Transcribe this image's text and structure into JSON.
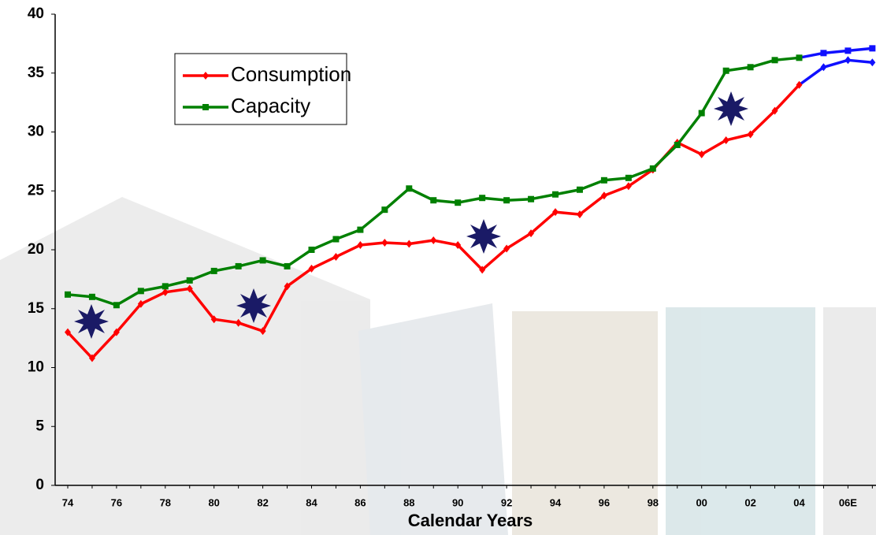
{
  "chart_data": {
    "type": "line",
    "x_label": "Calendar Years",
    "categories": [
      "74",
      null,
      "76",
      null,
      "78",
      null,
      "80",
      null,
      "82",
      null,
      "84",
      null,
      "86",
      null,
      "88",
      null,
      "90",
      null,
      "92",
      null,
      "94",
      null,
      "96",
      null,
      "98",
      null,
      "00",
      null,
      "02",
      null,
      "04",
      null,
      "06E",
      null
    ],
    "series": [
      {
        "name": "Consumption",
        "color": "#ff0000",
        "marker": "diamond",
        "projection": {
          "from": "04",
          "color": "#1010ff"
        },
        "values": [
          13.0,
          10.8,
          13.0,
          15.4,
          16.4,
          16.7,
          14.1,
          13.8,
          13.1,
          16.9,
          18.4,
          19.4,
          20.4,
          20.6,
          20.5,
          20.8,
          20.4,
          18.3,
          20.1,
          21.4,
          23.2,
          23.0,
          24.6,
          25.4,
          26.8,
          29.1,
          28.1,
          29.3,
          29.8,
          31.8,
          34.0,
          35.5,
          36.1,
          35.9
        ]
      },
      {
        "name": "Capacity",
        "color": "#008000",
        "marker": "square",
        "projection": {
          "from": "04",
          "color": "#1010ff"
        },
        "values": [
          16.2,
          16.0,
          15.3,
          16.5,
          16.9,
          17.4,
          18.2,
          18.6,
          19.1,
          18.6,
          20.0,
          20.9,
          21.7,
          23.4,
          25.2,
          24.2,
          24.0,
          24.4,
          24.2,
          24.3,
          24.7,
          25.1,
          25.9,
          26.1,
          26.9,
          28.9,
          31.6,
          35.2,
          35.5,
          36.1,
          36.3,
          36.7,
          36.9,
          37.1
        ]
      }
    ],
    "ylim": [
      0,
      40
    ],
    "yticks": [
      0,
      5,
      10,
      15,
      20,
      25,
      30,
      35,
      40
    ],
    "grid": false
  }
}
